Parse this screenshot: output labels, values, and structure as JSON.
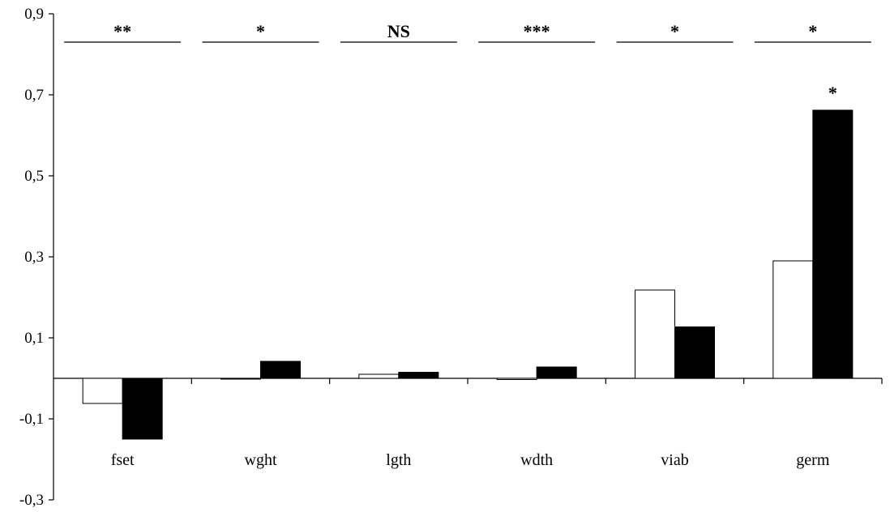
{
  "chart_data": {
    "type": "bar",
    "categories": [
      "fset",
      "wght",
      "lgth",
      "wdth",
      "viab",
      "germ"
    ],
    "series": [
      {
        "values": [
          -0.062,
          0.0,
          0.01,
          -0.003,
          0.218,
          0.29
        ],
        "color": "#ffffff"
      },
      {
        "values": [
          -0.15,
          0.042,
          0.015,
          0.028,
          0.127,
          0.662
        ],
        "color": "#000000"
      }
    ],
    "ylim": [
      -0.3,
      0.9
    ],
    "yticks": [
      "-0,3",
      "-0,1",
      "0,1",
      "0,3",
      "0,5",
      "0,7",
      "0,9"
    ],
    "ytick_values": [
      -0.3,
      -0.1,
      0.1,
      0.3,
      0.5,
      0.7,
      0.9
    ],
    "group_significance": [
      "**",
      "*",
      "NS",
      "***",
      "*",
      "*"
    ],
    "bar_annotations": [
      {
        "category": "germ",
        "series": 1,
        "text": "*"
      }
    ],
    "title": "",
    "xlabel": "",
    "ylabel": "",
    "grid": false,
    "legend": "none"
  }
}
